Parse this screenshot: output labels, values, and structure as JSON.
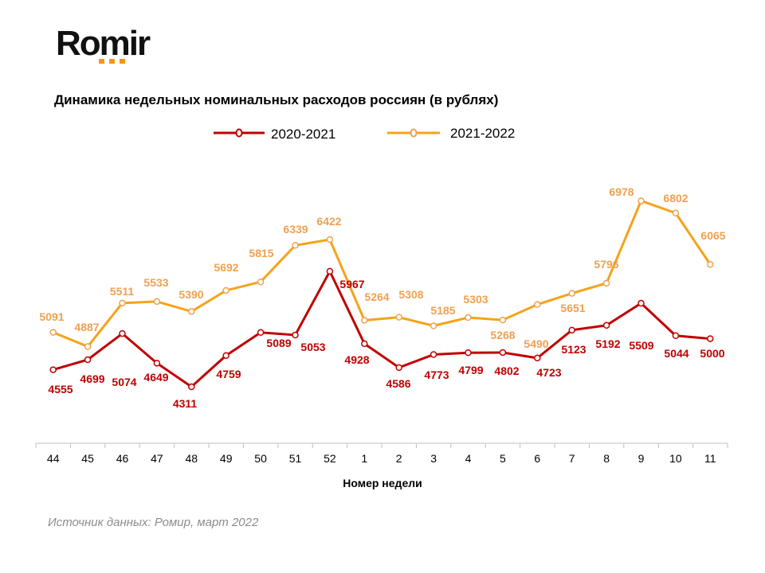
{
  "logo": {
    "text": "Romir"
  },
  "source": "Источник данных: Ромир, март 2022",
  "chart_data": {
    "type": "line",
    "title": "Динамика недельных номинальных расходов россиян (в рублях)",
    "xlabel": "Номер недели",
    "ylabel": "",
    "categories": [
      "44",
      "45",
      "46",
      "47",
      "48",
      "49",
      "50",
      "51",
      "52",
      "1",
      "2",
      "3",
      "4",
      "5",
      "6",
      "7",
      "8",
      "9",
      "10",
      "11"
    ],
    "ylim": [
      3500,
      7500
    ],
    "grid": false,
    "legend_position": "top-center",
    "series": [
      {
        "name": "2020-2021",
        "color": "#c00000",
        "values": [
          4555,
          4699,
          5074,
          4649,
          4311,
          4759,
          5089,
          5053,
          5967,
          4928,
          4586,
          4773,
          4799,
          4802,
          4723,
          5123,
          5192,
          5509,
          5044,
          5000
        ]
      },
      {
        "name": "2021-2022",
        "color": "#f5a31a",
        "label_color": "#f0a050",
        "values": [
          5091,
          4887,
          5511,
          5533,
          5390,
          5692,
          5815,
          6339,
          6422,
          5264,
          5308,
          5185,
          5303,
          5268,
          5490,
          5651,
          5796,
          6978,
          6802,
          6065
        ]
      }
    ]
  }
}
